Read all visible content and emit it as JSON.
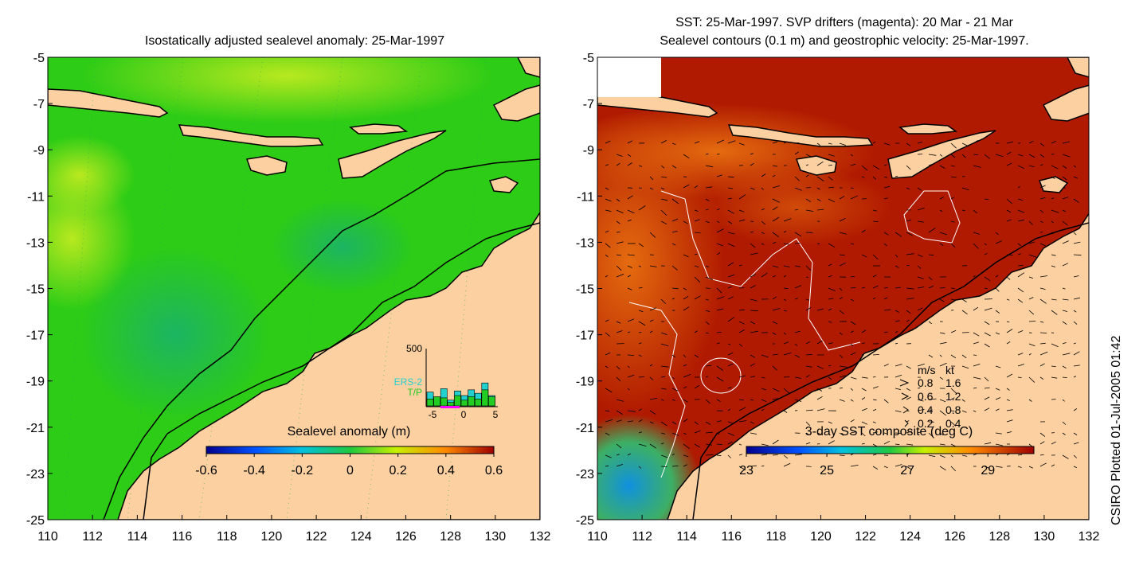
{
  "left_panel": {
    "title": "Isostatically adjusted sealevel anomaly: 25-Mar-1997",
    "colorbar_label": "Sealevel anomaly (m)",
    "colorbar_ticks": [
      "-0.6",
      "-0.4",
      "-0.2",
      "0",
      "0.2",
      "0.4",
      "0.6"
    ],
    "colors": {
      "land": "#fcd0a0",
      "sea": "#2dcc16",
      "sea_high": "#8fe11a",
      "sea_low": "#1ab85a"
    }
  },
  "right_panel": {
    "title_line1": "SST: 25-Mar-1997. SVP drifters (magenta): 20 Mar - 21 Mar",
    "title_line2": "Sealevel contours (0.1 m) and geostrophic velocity: 25-Mar-1997.",
    "colorbar_label": "3-day SST composite (deg C)",
    "colorbar_ticks": [
      "23",
      "25",
      "27",
      "29"
    ],
    "velocity_legend": {
      "header_ms": "m/s",
      "header_kt": "kt",
      "rows": [
        {
          "ms": "0.8",
          "kt": "1.6"
        },
        {
          "ms": "0.6",
          "kt": "1.2"
        },
        {
          "ms": "0.4",
          "kt": "0.8"
        },
        {
          "ms": "0.2",
          "kt": "0.4"
        }
      ]
    },
    "colors": {
      "land": "#fcd0a0",
      "warm": "#b01a00",
      "hot": "#a00800",
      "mid": "#e06010",
      "cool": "#30a0e0"
    }
  },
  "axes": {
    "y_ticks": [
      "-5",
      "-7",
      "-9",
      "-11",
      "-13",
      "-15",
      "-17",
      "-19",
      "-21",
      "-23",
      "-25"
    ],
    "x_ticks": [
      "110",
      "112",
      "114",
      "116",
      "118",
      "120",
      "122",
      "124",
      "126",
      "128",
      "130",
      "132"
    ]
  },
  "inset_histogram": {
    "y_max_label": "500",
    "series_labels": [
      "ERS-2",
      "T/P"
    ],
    "x_tick_labels": [
      "-5",
      "0",
      "5"
    ],
    "bins": [
      -5,
      -4,
      -3,
      -2,
      -1,
      0,
      1,
      2,
      3,
      4
    ],
    "ers2_values": [
      120,
      60,
      150,
      50,
      130,
      90,
      140,
      110,
      200,
      90
    ],
    "tp_values": [
      60,
      80,
      70,
      30,
      90,
      50,
      80,
      60,
      140,
      80
    ],
    "colors": {
      "ers2": "#22d0d0",
      "tp": "#22cc22",
      "drifter": "#ff00ff"
    }
  },
  "plot_credit": "CSIRO Plotted 01-Jul-2005 01:42"
}
